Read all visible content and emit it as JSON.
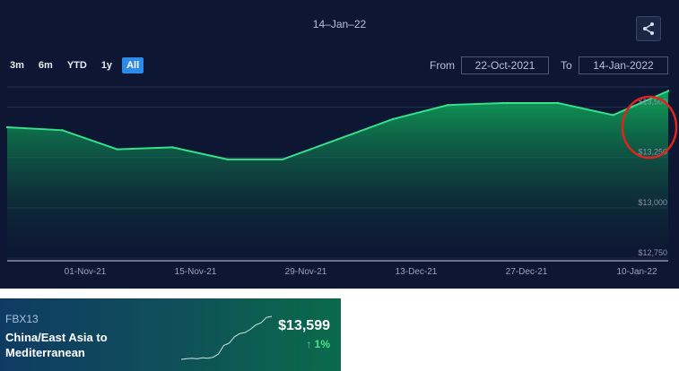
{
  "chart": {
    "hover_date": "14–Jan–22",
    "range_buttons": [
      {
        "label": "3m",
        "active": false
      },
      {
        "label": "6m",
        "active": false
      },
      {
        "label": "YTD",
        "active": false
      },
      {
        "label": "1y",
        "active": false
      },
      {
        "label": "All",
        "active": true
      }
    ],
    "from_label": "From",
    "from_value": "22-Oct-2021",
    "to_label": "To",
    "to_value": "14-Jan-2022",
    "share_icon": "share-icon",
    "colors": {
      "background": "#0d1733",
      "line": "#36e08a",
      "fill_top": "#0fa85a",
      "fill_bottom": "#0d1733",
      "highlight_circle": "#e0241c"
    }
  },
  "chart_data": {
    "type": "area",
    "x": [
      "22-Oct-21",
      "29-Oct-21",
      "5-Nov-21",
      "12-Nov-21",
      "19-Nov-21",
      "26-Nov-21",
      "3-Dec-21",
      "10-Dec-21",
      "17-Dec-21",
      "24-Dec-21",
      "31-Dec-21",
      "7-Jan-22",
      "14-Jan-22"
    ],
    "values": [
      13400,
      13385,
      13290,
      13300,
      13240,
      13240,
      13340,
      13440,
      13510,
      13520,
      13520,
      13460,
      13580
    ],
    "x_ticks": [
      "01-Nov-21",
      "15-Nov-21",
      "29-Nov-21",
      "13-Dec-21",
      "27-Dec-21",
      "10-Jan-22"
    ],
    "y_ticks": [
      "$12,750",
      "$13,000",
      "$13,250",
      "$13,500"
    ],
    "ylim": [
      12750,
      13600
    ],
    "grid": true
  },
  "ticker": {
    "code": "FBX13",
    "name": "China/East Asia to Mediterranean",
    "price": "$13,599",
    "change": "↑ 1%",
    "sparkline": [
      2.0,
      2.1,
      2.2,
      2.1,
      2.3,
      2.2,
      2.4,
      3.0,
      4.6,
      5.0,
      6.2,
      6.8,
      7.0,
      7.6,
      8.4,
      8.8,
      9.8,
      10.0
    ]
  }
}
